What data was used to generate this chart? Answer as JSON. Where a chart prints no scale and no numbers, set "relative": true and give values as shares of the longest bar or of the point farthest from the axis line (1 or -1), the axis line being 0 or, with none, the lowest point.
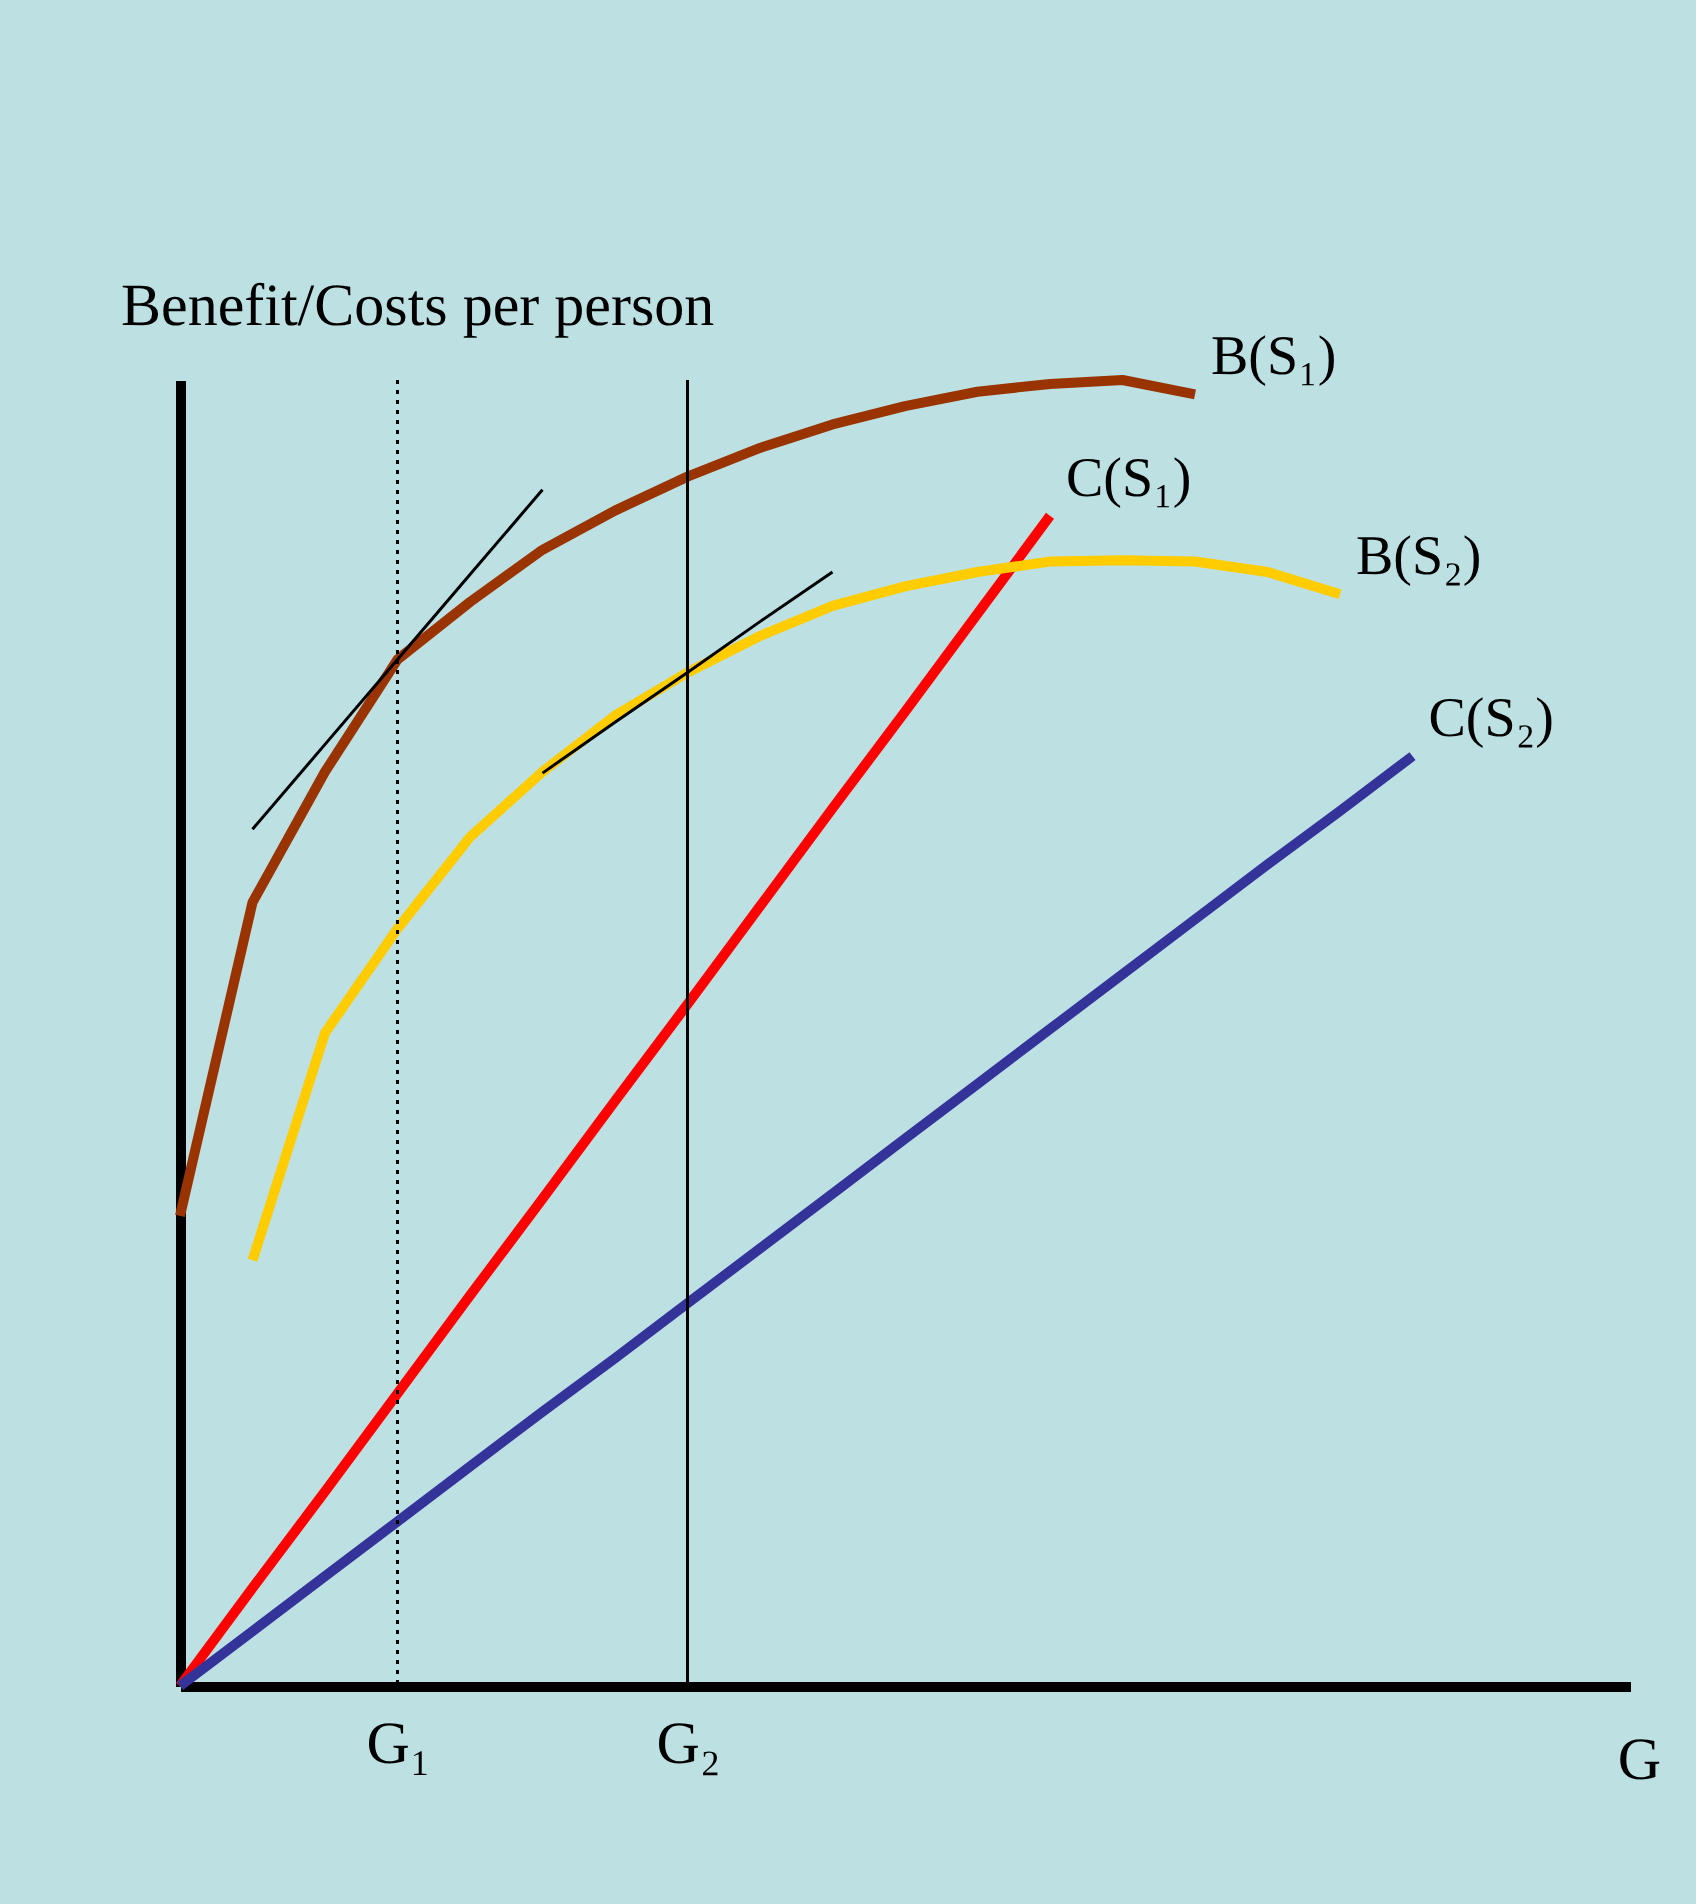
{
  "chart_data": {
    "type": "line",
    "relative": true,
    "xlabel": "G",
    "ylabel": "Benefit/Costs per person",
    "categories": [
      null,
      null,
      null,
      "G₁",
      null,
      null,
      null,
      "G₂",
      null,
      null,
      null,
      null,
      null,
      null,
      null,
      null,
      null,
      null,
      null,
      null,
      null
    ],
    "series": [
      {
        "name": "B(S₁)",
        "color": "#993300",
        "values": [
          0.36,
          0.6,
          0.7,
          0.786,
          0.83,
          0.87,
          0.9,
          0.926,
          0.948,
          0.966,
          0.98,
          0.991,
          0.997,
          1,
          0.989,
          null,
          null,
          null,
          null,
          null,
          null
        ]
      },
      {
        "name": "C(S₁)",
        "color": "#ff0000",
        "values": [
          0,
          0.075,
          0.149,
          0.224,
          0.299,
          0.373,
          0.448,
          0.522,
          0.597,
          0.672,
          0.746,
          0.821,
          0.896,
          null,
          null,
          null,
          null,
          null,
          null,
          null,
          null
        ]
      },
      {
        "name": "B(S₂)",
        "color": "#ffcc00",
        "values": [
          null,
          0.326,
          0.5,
          0.58,
          0.65,
          0.7,
          0.743,
          0.776,
          0.804,
          0.827,
          0.842,
          0.853,
          0.861,
          0.862,
          0.861,
          0.853,
          0.836,
          null,
          null,
          null,
          null
        ]
      },
      {
        "name": "C(S₂)",
        "color": "#333399",
        "values": [
          0,
          0.042,
          0.084,
          0.126,
          0.168,
          0.21,
          0.251,
          0.293,
          0.335,
          0.377,
          0.419,
          0.461,
          0.503,
          0.545,
          0.587,
          0.629,
          0.67,
          0.712,
          null,
          null,
          null
        ]
      },
      {
        "color": "#000000",
        "values": [
          null,
          0.656,
          0.721,
          0.786,
          0.851,
          0.916,
          null,
          null,
          null,
          null,
          null,
          null,
          null,
          null,
          null,
          null,
          null,
          null,
          null,
          null,
          null
        ]
      },
      {
        "color": "#000000",
        "values": [
          null,
          null,
          null,
          null,
          null,
          0.699,
          0.738,
          0.776,
          0.815,
          0.853,
          null,
          null,
          null,
          null,
          null,
          null,
          null,
          null,
          null,
          null,
          null
        ]
      }
    ],
    "ref_lines": [
      {
        "axis": "x",
        "value": "G₁",
        "line_style": "dotted",
        "color": "#000000"
      },
      {
        "axis": "x",
        "value": "G₂",
        "line_style": "solid",
        "color": "#000000"
      }
    ]
  }
}
